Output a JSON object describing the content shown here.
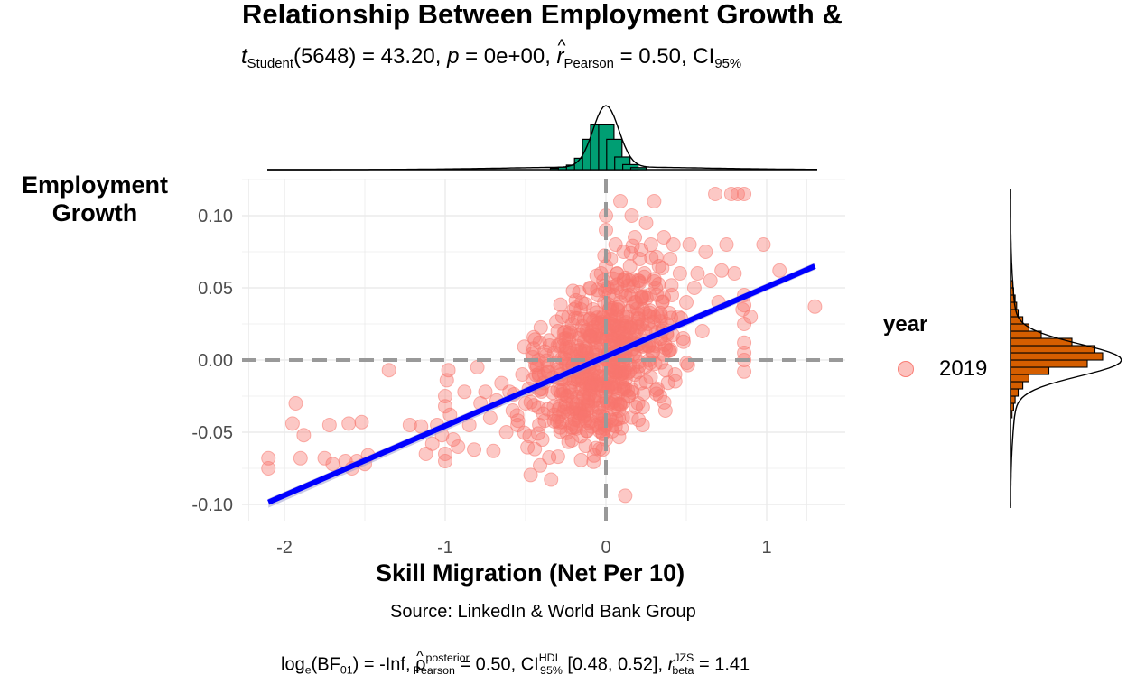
{
  "title": "Relationship Between Employment Growth &",
  "subtitle": {
    "t_sym": "t",
    "t_sub": "Student",
    "t_df": "(5648) = 43.20, ",
    "p_sym": "p",
    "p_val": " = 0e+00, ",
    "r_sym": "r",
    "r_sub": "Pearson",
    "r_val": " = 0.50, CI",
    "ci_sub": "95%"
  },
  "caption": "Source: LinkedIn & World Bank Group",
  "caption_stats": {
    "log": "log",
    "log_sub": "e",
    "bf": "(BF",
    "bf_sub": "01",
    "bf_val": ") = -Inf, ",
    "rho": "ρ",
    "rho_sup": "posterior",
    "rho_sub": "Pearson",
    "rho_val": " = 0.50, CI",
    "ci_sup": "HDI",
    "ci_sub": "95%",
    "ci_val": " [0.48, 0.52], ",
    "rbeta": "r",
    "rbeta_sup": "JZS",
    "rbeta_sub": "beta",
    "rbeta_val": " = 1.41"
  },
  "legend": {
    "title": "year",
    "label": "2019",
    "color": "#F8766D"
  },
  "colors": {
    "points": "#F8766D",
    "fit_line": "#0000FF",
    "x_hist": "#009E73",
    "y_hist": "#D55E00",
    "grid": "#EBEBEB",
    "ref_line": "#999999"
  },
  "chart_data": {
    "type": "scatter",
    "title": "Relationship Between Employment Growth &",
    "xlabel": "Skill Migration (Net Per 10)",
    "ylabel": "Employment Growth",
    "xlim": [
      -2.25,
      1.5
    ],
    "ylim": [
      -0.113,
      0.125
    ],
    "x_ticks": [
      -2,
      -1,
      0,
      1
    ],
    "x_tick_labels": [
      "-2",
      "-1",
      "0",
      "1"
    ],
    "y_ticks": [
      -0.1,
      -0.05,
      0.0,
      0.05,
      0.1
    ],
    "y_tick_labels": [
      "-0.10",
      "-0.05",
      "0.00",
      "0.05",
      "0.10"
    ],
    "grid": true,
    "legend_position": "right",
    "n": 5650,
    "regression_line": {
      "x": [
        -2.1,
        1.3
      ],
      "y": [
        -0.0985,
        0.065
      ]
    },
    "reference_lines": {
      "x": 0,
      "y": 0
    },
    "points": [
      [
        -2.1,
        -0.075
      ],
      [
        -2.1,
        -0.068
      ],
      [
        -1.95,
        -0.044
      ],
      [
        -1.93,
        -0.03
      ],
      [
        -1.9,
        -0.068
      ],
      [
        -1.88,
        -0.052
      ],
      [
        -1.75,
        -0.068
      ],
      [
        -1.72,
        -0.045
      ],
      [
        -1.7,
        -0.072
      ],
      [
        -1.62,
        -0.07
      ],
      [
        -1.6,
        -0.044
      ],
      [
        -1.58,
        -0.075
      ],
      [
        -1.55,
        -0.07
      ],
      [
        -1.52,
        -0.043
      ],
      [
        -1.5,
        -0.072
      ],
      [
        -1.48,
        -0.066
      ],
      [
        -1.35,
        -0.007
      ],
      [
        -1.22,
        -0.045
      ],
      [
        -1.15,
        -0.046
      ],
      [
        -1.12,
        -0.065
      ],
      [
        -1.08,
        -0.058
      ],
      [
        -1.05,
        -0.045
      ],
      [
        -1.02,
        -0.052
      ],
      [
        -1.0,
        -0.065
      ],
      [
        -1.0,
        -0.07
      ],
      [
        -1.0,
        -0.025
      ],
      [
        -1.0,
        -0.032
      ],
      [
        -0.99,
        -0.014
      ],
      [
        -0.98,
        -0.007
      ],
      [
        -0.97,
        -0.038
      ],
      [
        -0.95,
        -0.055
      ],
      [
        -0.92,
        -0.06
      ],
      [
        -0.88,
        -0.022
      ],
      [
        -0.85,
        -0.045
      ],
      [
        -0.82,
        -0.062
      ],
      [
        -0.8,
        -0.005
      ],
      [
        -0.78,
        -0.03
      ],
      [
        -0.75,
        -0.022
      ],
      [
        -0.72,
        -0.04
      ],
      [
        -0.7,
        -0.063
      ],
      [
        -0.68,
        -0.028
      ],
      [
        -0.65,
        -0.016
      ],
      [
        -0.62,
        -0.05
      ],
      [
        -0.6,
        -0.022
      ],
      [
        -0.58,
        -0.035
      ],
      [
        -0.55,
        -0.045
      ],
      [
        -0.52,
        -0.01
      ],
      [
        -0.5,
        -0.03
      ],
      [
        -0.48,
        -0.02
      ],
      [
        -0.45,
        0.008
      ],
      [
        -0.43,
        -0.005
      ],
      [
        -0.42,
        0.0
      ],
      [
        -0.4,
        -0.02
      ],
      [
        -0.38,
        -0.042
      ],
      [
        -0.36,
        -0.008
      ],
      [
        -0.35,
        0.01
      ],
      [
        -0.33,
        -0.012
      ],
      [
        -0.3,
        0.02
      ],
      [
        -0.3,
        0.01
      ],
      [
        -0.28,
        -0.01
      ],
      [
        -0.27,
        0.03
      ],
      [
        -0.25,
        0.015
      ],
      [
        -0.25,
        -0.03
      ],
      [
        -0.22,
        0.005
      ],
      [
        -0.21,
        0.025
      ],
      [
        -0.2,
        -0.015
      ],
      [
        -0.2,
        0.035
      ],
      [
        -0.18,
        0.0
      ],
      [
        -0.17,
        0.015
      ],
      [
        -0.15,
        -0.02
      ],
      [
        -0.15,
        0.04
      ],
      [
        -0.14,
        0.02
      ],
      [
        -0.12,
        0.008
      ],
      [
        -0.12,
        -0.035
      ],
      [
        -0.1,
        0.05
      ],
      [
        -0.1,
        0.028
      ],
      [
        -0.09,
        -0.01
      ],
      [
        -0.08,
        0.015
      ],
      [
        -0.08,
        0.035
      ],
      [
        -0.06,
        -0.045
      ],
      [
        -0.06,
        0.0
      ],
      [
        -0.05,
        0.02
      ],
      [
        -0.05,
        0.045
      ],
      [
        -0.04,
        -0.025
      ],
      [
        -0.03,
        0.01
      ],
      [
        -0.03,
        0.06
      ],
      [
        -0.02,
        0.03
      ],
      [
        -0.02,
        -0.005
      ],
      [
        -0.01,
        0.04
      ],
      [
        -0.01,
        -0.04
      ],
      [
        0.0,
        0.02
      ],
      [
        0.0,
        0.1
      ],
      [
        0.0,
        0.09
      ],
      [
        0.0,
        0.065
      ],
      [
        0.0,
        0.0
      ],
      [
        0.0,
        -0.055
      ],
      [
        0.01,
        0.05
      ],
      [
        0.01,
        -0.02
      ],
      [
        0.02,
        0.035
      ],
      [
        0.02,
        0.01
      ],
      [
        0.03,
        -0.03
      ],
      [
        0.03,
        0.07
      ],
      [
        0.04,
        0.025
      ],
      [
        0.04,
        -0.045
      ],
      [
        0.05,
        0.045
      ],
      [
        0.05,
        0.005
      ],
      [
        0.06,
        0.08
      ],
      [
        0.06,
        -0.01
      ],
      [
        0.07,
        0.03
      ],
      [
        0.07,
        0.06
      ],
      [
        0.08,
        0.015
      ],
      [
        0.08,
        -0.035
      ],
      [
        0.09,
        0.04
      ],
      [
        0.09,
        0.11
      ],
      [
        0.1,
        0.025
      ],
      [
        0.1,
        -0.015
      ],
      [
        0.11,
        0.055
      ],
      [
        0.11,
        0.075
      ],
      [
        0.12,
        0.005
      ],
      [
        0.12,
        -0.094
      ],
      [
        0.13,
        0.03
      ],
      [
        0.14,
        0.045
      ],
      [
        0.14,
        -0.025
      ],
      [
        0.15,
        0.065
      ],
      [
        0.15,
        0.015
      ],
      [
        0.16,
        0.1
      ],
      [
        0.17,
        -0.005
      ],
      [
        0.18,
        0.04
      ],
      [
        0.18,
        0.085
      ],
      [
        0.19,
        0.02
      ],
      [
        0.2,
        0.055
      ],
      [
        0.2,
        -0.03
      ],
      [
        0.21,
        0.07
      ],
      [
        0.22,
        0.01
      ],
      [
        0.23,
        0.035
      ],
      [
        0.24,
        0.06
      ],
      [
        0.25,
        -0.015
      ],
      [
        0.25,
        0.095
      ],
      [
        0.26,
        0.025
      ],
      [
        0.27,
        0.045
      ],
      [
        0.28,
        0.08
      ],
      [
        0.29,
        0.005
      ],
      [
        0.3,
        0.03
      ],
      [
        0.3,
        0.11
      ],
      [
        0.31,
        0.05
      ],
      [
        0.32,
        -0.02
      ],
      [
        0.33,
        0.065
      ],
      [
        0.34,
        0.015
      ],
      [
        0.35,
        0.04
      ],
      [
        0.36,
        0.085
      ],
      [
        0.37,
        -0.035
      ],
      [
        0.38,
        0.025
      ],
      [
        0.4,
        0.07
      ],
      [
        0.41,
        0.045
      ],
      [
        0.42,
        0.08
      ],
      [
        0.43,
        -0.01
      ],
      [
        0.45,
        0.03
      ],
      [
        0.46,
        0.06
      ],
      [
        0.48,
        0.015
      ],
      [
        0.5,
        0.04
      ],
      [
        0.52,
        0.08
      ],
      [
        0.55,
        0.05
      ],
      [
        0.57,
        0.06
      ],
      [
        0.6,
        0.02
      ],
      [
        0.62,
        0.075
      ],
      [
        0.65,
        0.055
      ],
      [
        0.68,
        0.115
      ],
      [
        0.7,
        0.04
      ],
      [
        0.72,
        0.062
      ],
      [
        0.75,
        0.08
      ],
      [
        0.78,
        0.115
      ],
      [
        0.8,
        0.06
      ],
      [
        0.82,
        0.115
      ],
      [
        0.85,
        0.035
      ],
      [
        0.86,
        0.115
      ],
      [
        0.86,
        0.025
      ],
      [
        0.86,
        0.012
      ],
      [
        0.86,
        0.005
      ],
      [
        0.86,
        0.0
      ],
      [
        0.86,
        -0.008
      ],
      [
        0.86,
        0.038
      ],
      [
        0.86,
        0.045
      ],
      [
        0.9,
        0.03
      ],
      [
        0.98,
        0.08
      ],
      [
        1.08,
        0.062
      ],
      [
        1.3,
        0.037
      ]
    ]
  }
}
